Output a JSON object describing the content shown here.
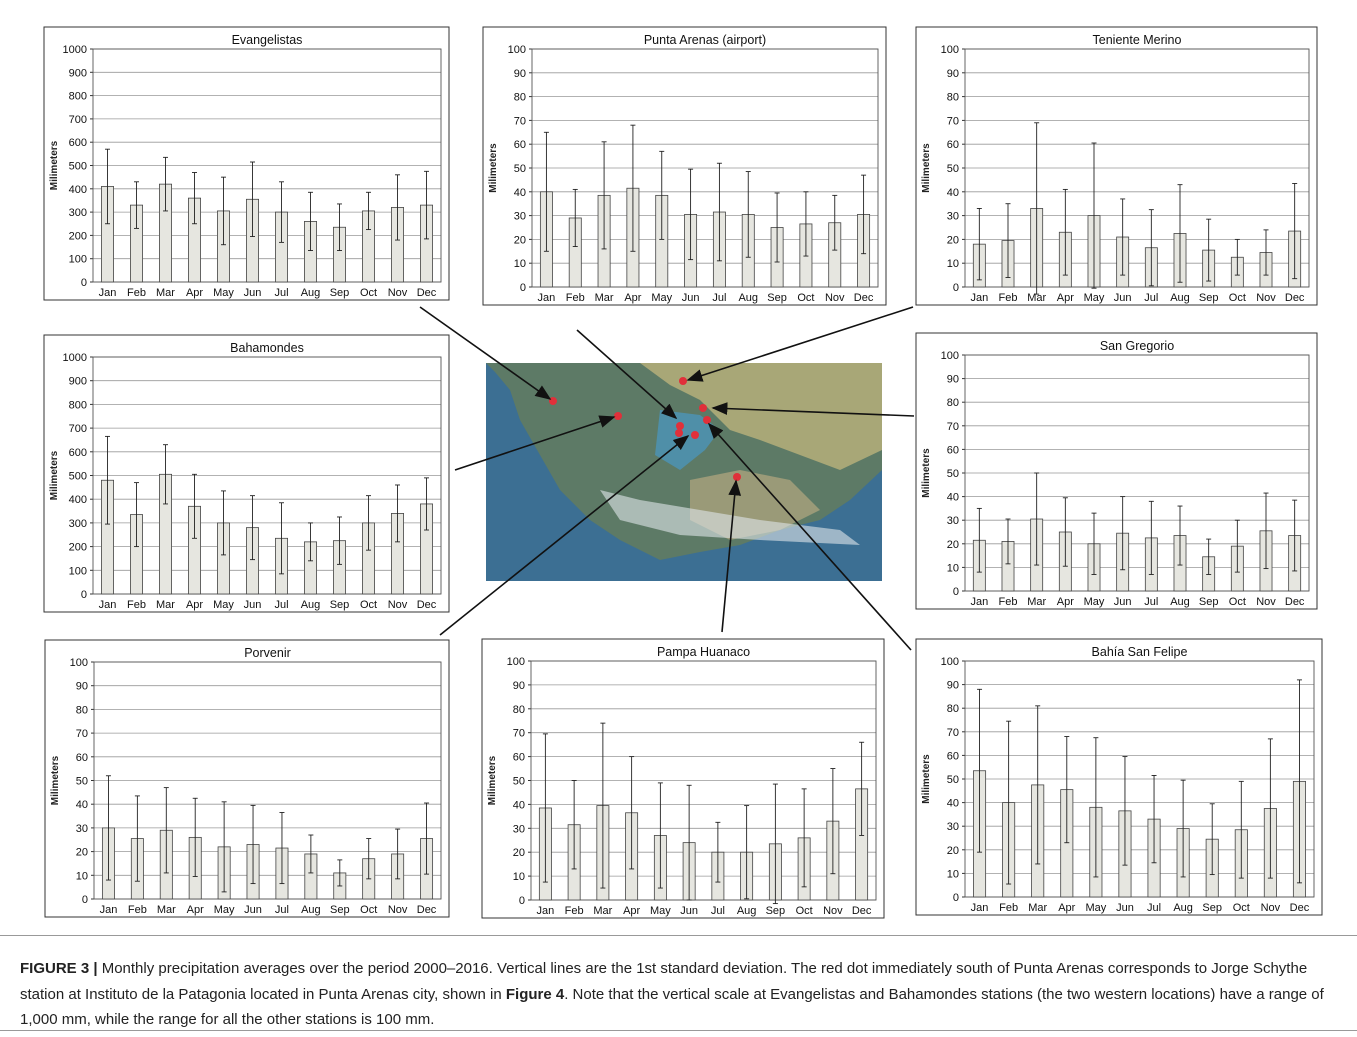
{
  "chart_data": [
    {
      "type": "bar",
      "title": "Evangelistas",
      "y_label": "Milimeters",
      "categories": [
        "Jan",
        "Feb",
        "Mar",
        "Apr",
        "May",
        "Jun",
        "Jul",
        "Aug",
        "Sep",
        "Oct",
        "Nov",
        "Dec"
      ],
      "values": [
        410,
        330,
        420,
        360,
        305,
        355,
        300,
        260,
        235,
        305,
        320,
        330
      ],
      "errors": [
        160,
        100,
        115,
        110,
        145,
        160,
        130,
        125,
        100,
        80,
        140,
        145
      ],
      "ylim": [
        0,
        1000
      ],
      "yticks": [
        0,
        100,
        200,
        300,
        400,
        500,
        600,
        700,
        800,
        900,
        1000
      ],
      "color": "#e6e6e0",
      "grid": true
    },
    {
      "type": "bar",
      "title": "Punta Arenas (airport)",
      "y_label": "Milimeters",
      "categories": [
        "Jan",
        "Feb",
        "Mar",
        "Apr",
        "May",
        "Jun",
        "Jul",
        "Aug",
        "Sep",
        "Oct",
        "Nov",
        "Dec"
      ],
      "values": [
        40,
        29,
        38.5,
        41.5,
        38.5,
        30.5,
        31.5,
        30.5,
        25,
        26.5,
        27,
        30.5
      ],
      "errors": [
        25,
        12,
        22.5,
        26.5,
        18.5,
        19,
        20.5,
        18,
        14.5,
        13.5,
        11.5,
        16.5
      ],
      "ylim": [
        0,
        100
      ],
      "yticks": [
        0,
        10,
        20,
        30,
        40,
        50,
        60,
        70,
        80,
        90,
        100
      ],
      "color": "#e6e6e0",
      "grid": true
    },
    {
      "type": "bar",
      "title": "Teniente Merino",
      "y_label": "Milimeters",
      "categories": [
        "Jan",
        "Feb",
        "Mar",
        "Apr",
        "May",
        "Jun",
        "Jul",
        "Aug",
        "Sep",
        "Oct",
        "Nov",
        "Dec"
      ],
      "values": [
        18,
        19.5,
        33,
        23,
        30,
        21,
        16.5,
        22.5,
        15.5,
        12.5,
        14.5,
        23.5
      ],
      "errors": [
        15,
        15.5,
        36,
        18,
        30.5,
        16,
        16,
        20.5,
        13,
        7.5,
        9.5,
        20
      ],
      "ylim": [
        0,
        100
      ],
      "yticks": [
        0,
        10,
        20,
        30,
        40,
        50,
        60,
        70,
        80,
        90,
        100
      ],
      "color": "#e6e6e0",
      "grid": true
    },
    {
      "type": "bar",
      "title": "Bahamondes",
      "y_label": "Milimeters",
      "categories": [
        "Jan",
        "Feb",
        "Mar",
        "Apr",
        "May",
        "Jun",
        "Jul",
        "Aug",
        "Sep",
        "Oct",
        "Nov",
        "Dec"
      ],
      "values": [
        480,
        335,
        505,
        370,
        300,
        280,
        235,
        220,
        225,
        300,
        340,
        380
      ],
      "errors": [
        185,
        135,
        125,
        135,
        135,
        135,
        150,
        80,
        100,
        115,
        120,
        110
      ],
      "ylim": [
        0,
        1000
      ],
      "yticks": [
        0,
        100,
        200,
        300,
        400,
        500,
        600,
        700,
        800,
        900,
        1000
      ],
      "color": "#e6e6e0",
      "grid": true
    },
    {
      "type": "bar",
      "title": "San Gregorio",
      "y_label": "Milimeters",
      "categories": [
        "Jan",
        "Feb",
        "Mar",
        "Apr",
        "May",
        "Jun",
        "Jul",
        "Aug",
        "Sep",
        "Oct",
        "Nov",
        "Dec"
      ],
      "values": [
        21.5,
        21,
        30.5,
        25,
        20,
        24.5,
        22.5,
        23.5,
        14.5,
        19,
        25.5,
        23.5
      ],
      "errors": [
        13.5,
        9.5,
        19.5,
        14.5,
        13,
        15.5,
        15.5,
        12.5,
        7.5,
        11,
        16,
        15
      ],
      "ylim": [
        0,
        100
      ],
      "yticks": [
        0,
        10,
        20,
        30,
        40,
        50,
        60,
        70,
        80,
        90,
        100
      ],
      "color": "#e6e6e0",
      "grid": true
    },
    {
      "type": "bar",
      "title": "Porvenir",
      "y_label": "Milimeters",
      "categories": [
        "Jan",
        "Feb",
        "Mar",
        "Apr",
        "May",
        "Jun",
        "Jul",
        "Aug",
        "Sep",
        "Oct",
        "Nov",
        "Dec"
      ],
      "values": [
        30,
        25.5,
        29,
        26,
        22,
        23,
        21.5,
        19,
        11,
        17,
        19,
        25.5
      ],
      "errors": [
        22,
        18,
        18,
        16.5,
        19,
        16.5,
        15,
        8,
        5.5,
        8.5,
        10.5,
        15
      ],
      "ylim": [
        0,
        100
      ],
      "yticks": [
        0,
        10,
        20,
        30,
        40,
        50,
        60,
        70,
        80,
        90,
        100
      ],
      "color": "#e6e6e0",
      "grid": true
    },
    {
      "type": "bar",
      "title": "Pampa Huanaco",
      "y_label": "Milimeters",
      "categories": [
        "Jan",
        "Feb",
        "Mar",
        "Apr",
        "May",
        "Jun",
        "Jul",
        "Aug",
        "Sep",
        "Oct",
        "Nov",
        "Dec"
      ],
      "values": [
        38.5,
        31.5,
        39.5,
        36.5,
        27,
        24,
        20,
        20,
        23.5,
        26,
        33,
        46.5
      ],
      "errors": [
        31,
        18.5,
        34.5,
        23.5,
        22,
        24,
        12.5,
        19.5,
        25,
        20.5,
        22,
        19.5
      ],
      "ylim": [
        0,
        100
      ],
      "yticks": [
        0,
        10,
        20,
        30,
        40,
        50,
        60,
        70,
        80,
        90,
        100
      ],
      "color": "#e6e6e0",
      "grid": true
    },
    {
      "type": "bar",
      "title": "Bahía San Felipe",
      "y_label": "Milimeters",
      "categories": [
        "Jan",
        "Feb",
        "Mar",
        "Apr",
        "May",
        "Jun",
        "Jul",
        "Aug",
        "Sep",
        "Oct",
        "Nov",
        "Dec"
      ],
      "values": [
        53.5,
        40,
        47.5,
        45.5,
        38,
        36.5,
        33,
        29,
        24.5,
        28.5,
        37.5,
        49
      ],
      "errors": [
        34.5,
        34.5,
        33.5,
        22.5,
        29.5,
        23,
        18.5,
        20.5,
        15,
        20.5,
        29.5,
        43
      ],
      "ylim": [
        0,
        100
      ],
      "yticks": [
        0,
        10,
        20,
        30,
        40,
        50,
        60,
        70,
        80,
        90,
        100
      ],
      "color": "#e6e6e0",
      "grid": true
    }
  ],
  "caption": {
    "label": "FIGURE 3 |",
    "text": " Monthly precipitation averages over the period 2000–2016. Vertical lines are the 1st standard deviation. The red dot immediately south of Punta Arenas corresponds to Jorge Schythe station at Instituto de la Patagonia located in Punta Arenas city, shown in ",
    "ref": "Figure 4",
    "text_end": ". Note that the vertical scale at Evangelistas and Bahamondes stations (the two western locations) have a range of 1,000 mm, while the range for all the other stations is 100 mm."
  }
}
